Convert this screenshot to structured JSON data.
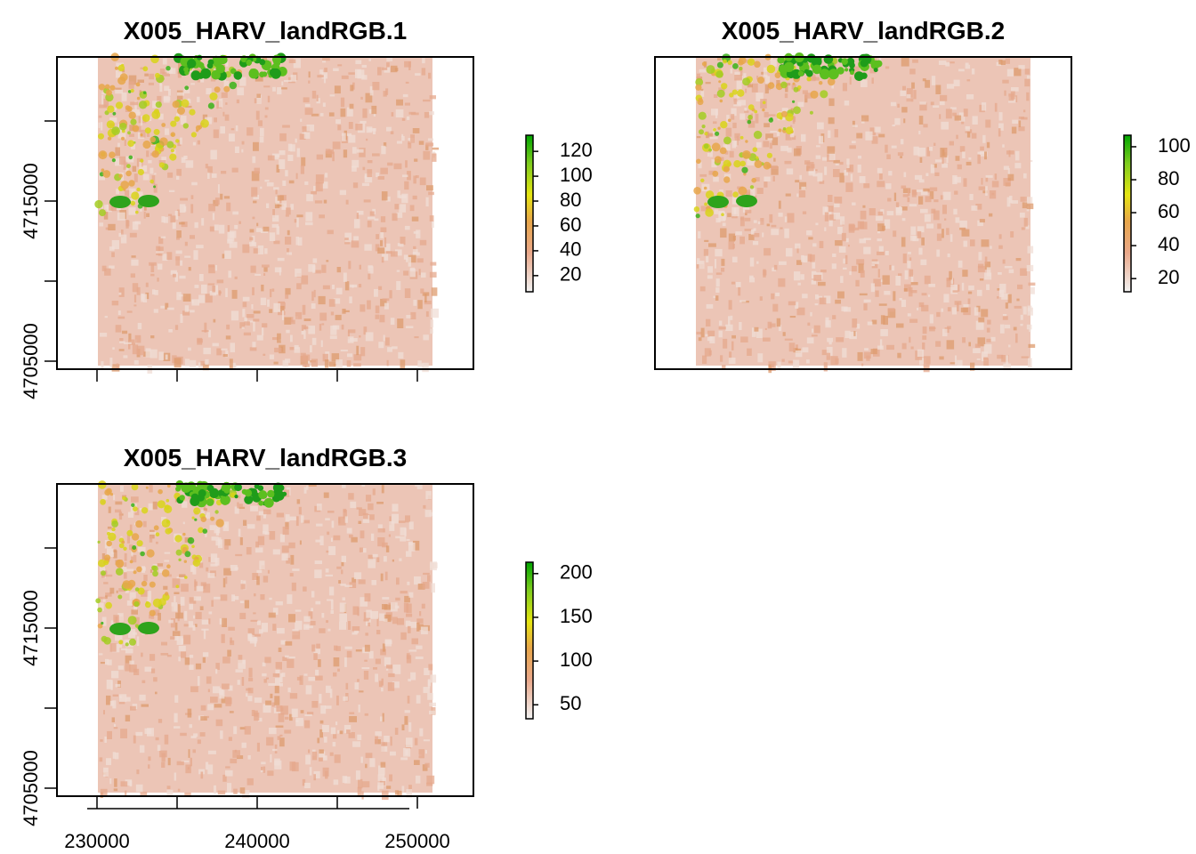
{
  "chart_data": [
    {
      "type": "heatmap",
      "title": "X005_HARV_landRGB.1",
      "xlabel": "",
      "ylabel": "",
      "x_ticks": [
        "230000",
        "240000",
        "250000"
      ],
      "y_tick_labels": [
        "4705000",
        "4715000"
      ],
      "y_ticks": [
        4705000,
        4710000,
        4715000,
        4720000
      ],
      "x_axis_labels_shown": false,
      "legend": {
        "labels": [
          "20",
          "40",
          "60",
          "80",
          "100",
          "120"
        ],
        "values": [
          20,
          40,
          60,
          80,
          100,
          120
        ],
        "range": [
          7,
          133
        ],
        "colors": [
          "#f2f2f2",
          "#eaa88a",
          "#e8a64a",
          "#e6e512",
          "#7fcd1e",
          "#00a600"
        ],
        "placement": "right"
      }
    },
    {
      "type": "heatmap",
      "title": "X005_HARV_landRGB.2",
      "xlabel": "",
      "ylabel": "",
      "x_ticks": [],
      "y_tick_labels": [],
      "y_ticks": [],
      "x_axis_labels_shown": false,
      "legend": {
        "labels": [
          "20",
          "40",
          "60",
          "80",
          "100"
        ],
        "values": [
          20,
          40,
          60,
          80,
          100
        ],
        "range": [
          12,
          107
        ],
        "colors": [
          "#f2f2f2",
          "#eaa88a",
          "#e8a64a",
          "#e6e512",
          "#7fcd1e",
          "#00a600"
        ],
        "placement": "right"
      }
    },
    {
      "type": "heatmap",
      "title": "X005_HARV_landRGB.3",
      "xlabel": "",
      "ylabel": "",
      "x_ticks": [
        "230000",
        "240000",
        "250000"
      ],
      "y_tick_labels": [
        "4705000",
        "4715000"
      ],
      "y_ticks": [
        4705000,
        4710000,
        4715000,
        4720000
      ],
      "x_axis_labels_shown": true,
      "legend": {
        "labels": [
          "50",
          "100",
          "150",
          "200"
        ],
        "values": [
          50,
          100,
          150,
          200
        ],
        "range": [
          34,
          213
        ],
        "colors": [
          "#f2f2f2",
          "#eaa88a",
          "#e8a64a",
          "#e6e512",
          "#7fcd1e",
          "#00a600"
        ],
        "placement": "right"
      }
    }
  ]
}
